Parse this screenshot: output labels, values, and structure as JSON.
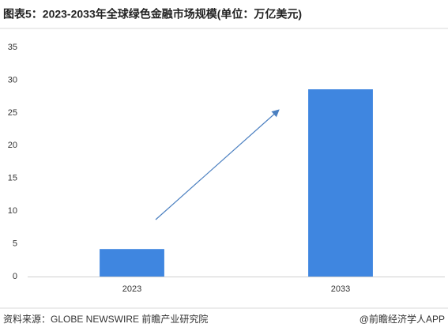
{
  "chart_data": {
    "type": "bar",
    "title": "图表5：2023-2033年全球绿色金融市场规模(单位：万亿美元)",
    "categories": [
      "2023",
      "2033"
    ],
    "values": [
      4.2,
      28.6
    ],
    "color": "#3f86e0",
    "ylim": [
      0,
      35
    ],
    "yticks": [
      0,
      5,
      10,
      15,
      20,
      25,
      30,
      35
    ],
    "grid": false,
    "source": "资料来源：GLOBE  NEWSWIRE 前瞻产业研究院",
    "credit": "@前瞻经济学人APP"
  }
}
